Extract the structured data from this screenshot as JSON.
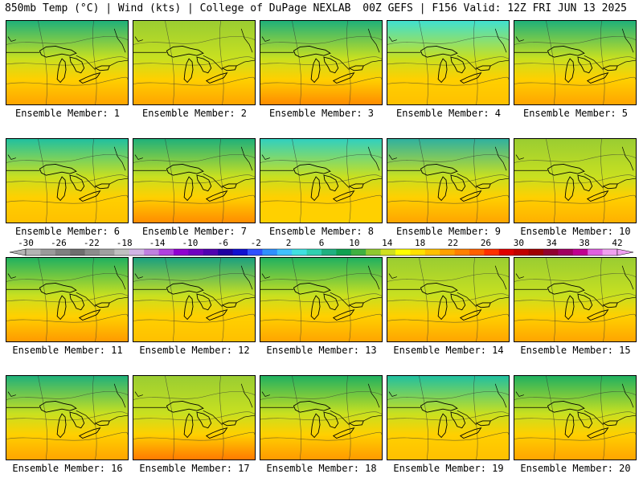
{
  "header": {
    "left": "850mb Temp (°C) | Wind (kts) | College of DuPage NEXLAB",
    "right": "00Z GEFS | F156 Valid: 12Z FRI JUN 13 2025"
  },
  "panel_label_prefix": "Ensemble Member:",
  "members": [
    {
      "label": "Ensemble Member: 1",
      "north_tint": "#1fb07a",
      "south_tint": "#ffa500"
    },
    {
      "label": "Ensemble Member: 2",
      "north_tint": "#9acd32",
      "south_tint": "#ffa500"
    },
    {
      "label": "Ensemble Member: 3",
      "north_tint": "#1fb07a",
      "south_tint": "#ff8c00"
    },
    {
      "label": "Ensemble Member: 4",
      "north_tint": "#40e0d0",
      "south_tint": "#ffc000"
    },
    {
      "label": "Ensemble Member: 5",
      "north_tint": "#1fb07a",
      "south_tint": "#ffa500"
    },
    {
      "label": "Ensemble Member: 6",
      "north_tint": "#20c0a0",
      "south_tint": "#ffc000"
    },
    {
      "label": "Ensemble Member: 7",
      "north_tint": "#1fb07a",
      "south_tint": "#ff8c00"
    },
    {
      "label": "Ensemble Member: 8",
      "north_tint": "#30d0c0",
      "south_tint": "#ffd000"
    },
    {
      "label": "Ensemble Member: 9",
      "north_tint": "#2fb0a0",
      "south_tint": "#ffa500"
    },
    {
      "label": "Ensemble Member: 10",
      "north_tint": "#9acd32",
      "south_tint": "#ffb000"
    },
    {
      "label": "Ensemble Member: 11",
      "north_tint": "#20b060",
      "south_tint": "#ff9a00"
    },
    {
      "label": "Ensemble Member: 12",
      "north_tint": "#1aa080",
      "south_tint": "#ffc000"
    },
    {
      "label": "Ensemble Member: 13",
      "north_tint": "#20b060",
      "south_tint": "#ffa500"
    },
    {
      "label": "Ensemble Member: 14",
      "north_tint": "#9acd32",
      "south_tint": "#ffa500"
    },
    {
      "label": "Ensemble Member: 15",
      "north_tint": "#9acd32",
      "south_tint": "#ffa500"
    },
    {
      "label": "Ensemble Member: 16",
      "north_tint": "#1fb07a",
      "south_tint": "#ffa500"
    },
    {
      "label": "Ensemble Member: 17",
      "north_tint": "#9acd32",
      "south_tint": "#ff7a00"
    },
    {
      "label": "Ensemble Member: 18",
      "north_tint": "#20b060",
      "south_tint": "#ff9a00"
    },
    {
      "label": "Ensemble Member: 19",
      "north_tint": "#20c0a0",
      "south_tint": "#ffc000"
    },
    {
      "label": "Ensemble Member: 20",
      "north_tint": "#20b060",
      "south_tint": "#ffa500"
    }
  ],
  "colorbar": {
    "ticks": [
      "-30",
      "-26",
      "-22",
      "-18",
      "-14",
      "-10",
      "-6",
      "-2",
      "2",
      "6",
      "10",
      "14",
      "18",
      "22",
      "26",
      "30",
      "34",
      "38",
      "42"
    ],
    "colors": [
      "#b4b4b4",
      "#9a9a9a",
      "#808080",
      "#6e6e6e",
      "#8c8c8c",
      "#a0a0a0",
      "#c0c0c0",
      "#d2b4e6",
      "#c080e0",
      "#b040e0",
      "#9000d0",
      "#7000c0",
      "#5000b0",
      "#2000a0",
      "#1010d0",
      "#3050ff",
      "#3090ff",
      "#40c0ff",
      "#40e0e0",
      "#30d0b0",
      "#20b080",
      "#10a050",
      "#40b040",
      "#90c830",
      "#d0e020",
      "#ffff00",
      "#ffe000",
      "#ffc000",
      "#ffa000",
      "#ff8000",
      "#ff6000",
      "#ff3000",
      "#e00000",
      "#c00000",
      "#a00000",
      "#900030",
      "#a00060",
      "#c00090",
      "#e060e0",
      "#f0a0f0"
    ]
  }
}
